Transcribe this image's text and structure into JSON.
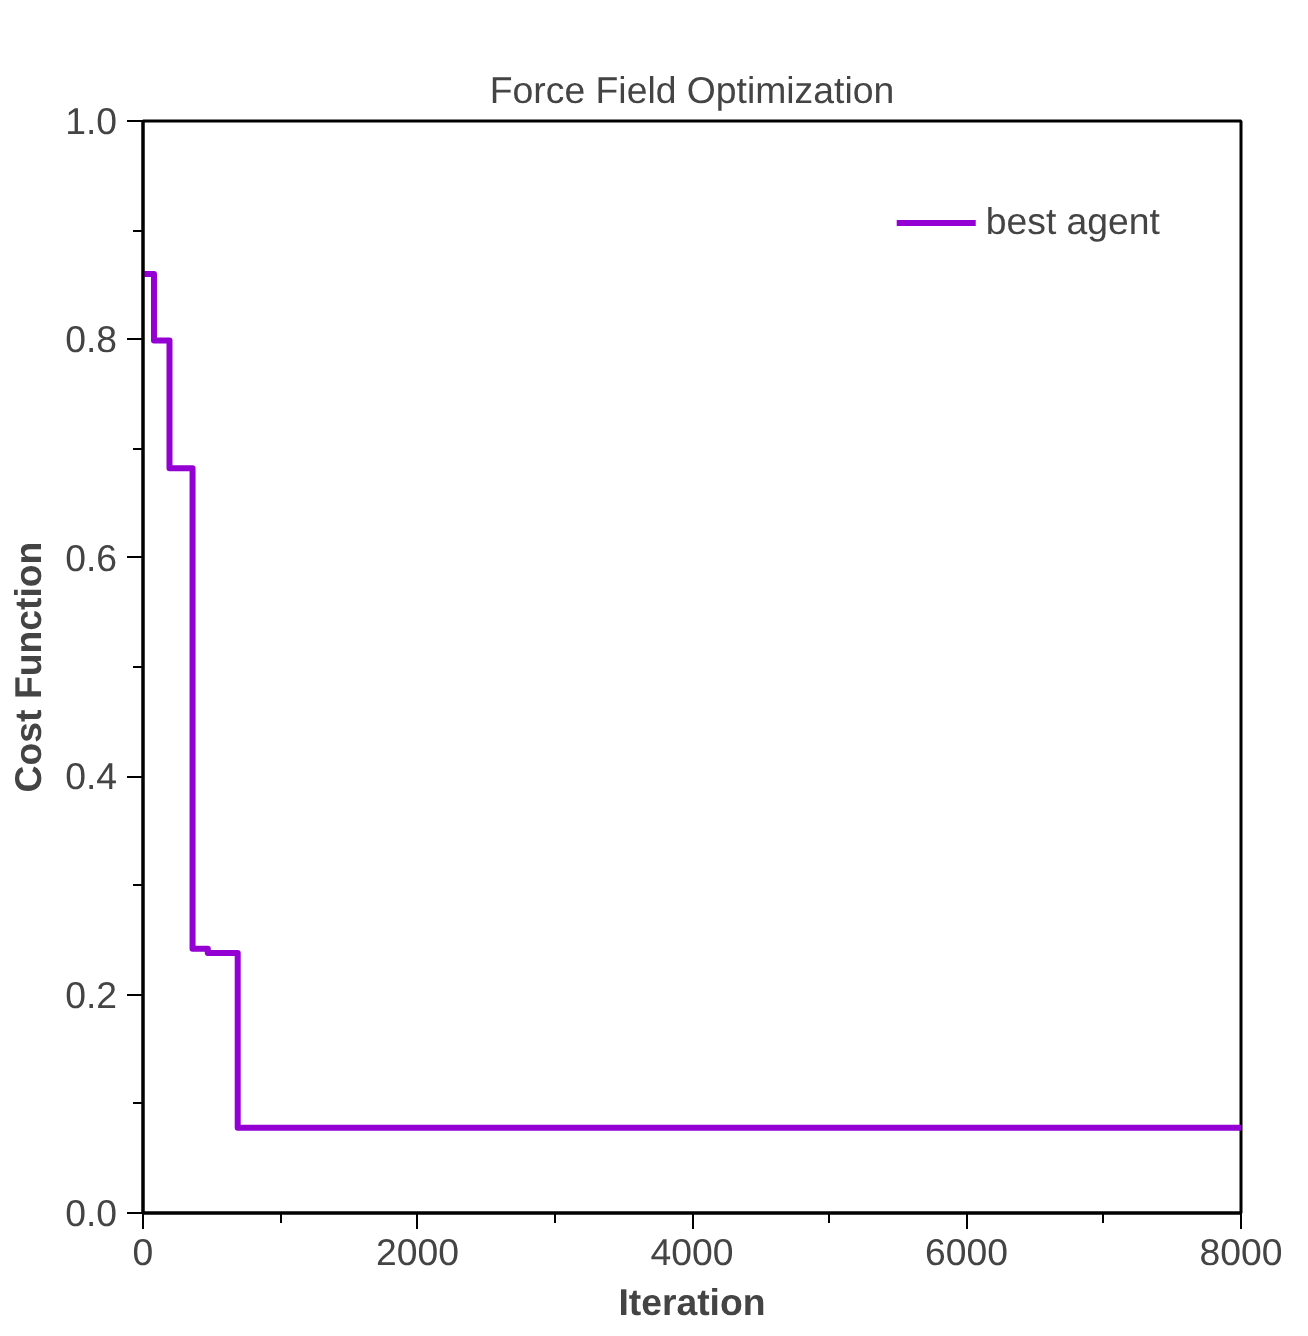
{
  "chart_data": {
    "type": "step",
    "title": "Force Field Optimization",
    "xlabel": "Iteration",
    "ylabel": "Cost Function",
    "x": [
      0,
      80,
      193,
      361,
      472,
      690,
      8000
    ],
    "series": [
      {
        "name": "best agent",
        "color": "#9400d3",
        "values": [
          0.86,
          0.799,
          0.682,
          0.242,
          0.238,
          0.078,
          0.078
        ]
      }
    ],
    "xlim": [
      0,
      8000
    ],
    "ylim": [
      0,
      1
    ],
    "xticks": [
      0,
      {
        "value": 1000,
        "label": null
      },
      2000,
      {
        "value": 3000,
        "label": null
      },
      4000,
      {
        "value": 5000,
        "label": null
      },
      6000,
      {
        "value": 7000,
        "label": null
      },
      8000
    ],
    "yticks": [
      {
        "value": 0,
        "label": "0.0"
      },
      {
        "value": 0.1,
        "label": null
      },
      {
        "value": 0.2,
        "label": "0.2"
      },
      {
        "value": 0.3,
        "label": null
      },
      {
        "value": 0.4,
        "label": "0.4"
      },
      {
        "value": 0.5,
        "label": null
      },
      {
        "value": 0.6,
        "label": "0.6"
      },
      {
        "value": 0.7,
        "label": null
      },
      {
        "value": 0.8,
        "label": "0.8"
      },
      {
        "value": 0.9,
        "label": null
      },
      {
        "value": 1,
        "label": "1.0"
      }
    ],
    "grid": false,
    "legend": "top right",
    "line_style": "solid",
    "marker": "none"
  }
}
